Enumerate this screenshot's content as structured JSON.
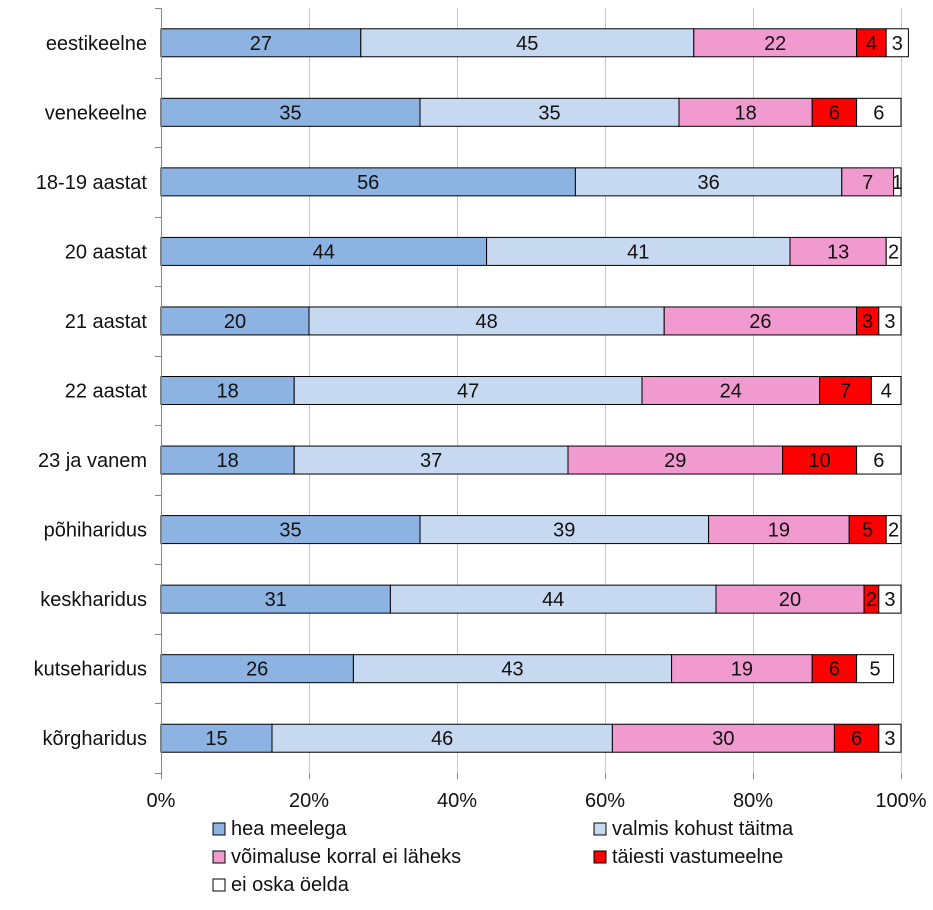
{
  "chart_data": {
    "type": "bar",
    "orientation": "horizontal",
    "stacked": true,
    "percent_stacked": true,
    "categories": [
      "eestikeelne",
      "venekeelne",
      "18-19 aastat",
      "20 aastat",
      "21 aastat",
      "22 aastat",
      "23 ja vanem",
      "põhiharidus",
      "keskharidus",
      "kutseharidus",
      "kõrgharidus"
    ],
    "series": [
      {
        "name": "hea meelega",
        "color": "#8db3e2",
        "values": [
          27,
          35,
          56,
          44,
          20,
          18,
          18,
          35,
          31,
          26,
          15
        ]
      },
      {
        "name": "valmis kohust täitma",
        "color": "#c6d9f1",
        "values": [
          45,
          35,
          36,
          41,
          48,
          47,
          37,
          39,
          44,
          43,
          46
        ]
      },
      {
        "name": "võimaluse korral ei läheks",
        "color": "#f19ad0",
        "values": [
          22,
          18,
          7,
          13,
          26,
          24,
          29,
          19,
          20,
          19,
          30
        ]
      },
      {
        "name": "täiesti vastumeelne",
        "color": "#ff0000",
        "values": [
          4,
          6,
          0,
          0,
          3,
          7,
          10,
          5,
          2,
          6,
          6
        ]
      },
      {
        "name": "ei oska öelda",
        "color": "#ffffff",
        "values": [
          3,
          6,
          1,
          2,
          3,
          4,
          6,
          2,
          3,
          5,
          3
        ]
      }
    ],
    "xlim": [
      0,
      100
    ],
    "x_ticks": [
      "0%",
      "20%",
      "40%",
      "60%",
      "80%",
      "100%"
    ],
    "grid": true,
    "legend_position": "bottom"
  }
}
